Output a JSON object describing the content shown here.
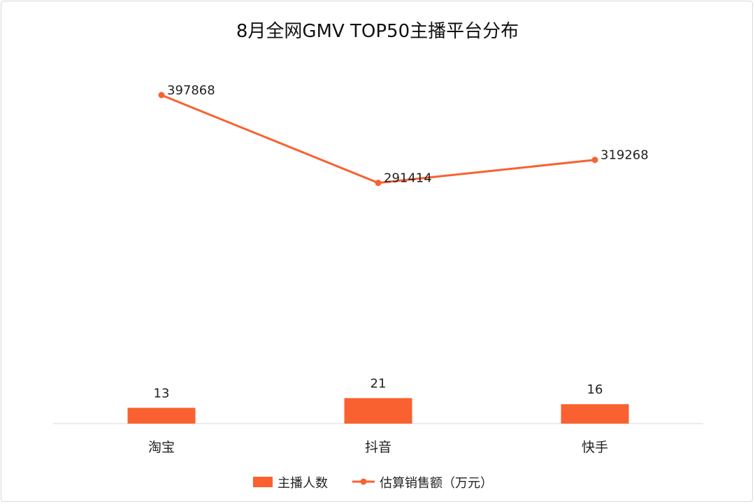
{
  "chart_data": {
    "type": "bar+line",
    "title": "8月全网GMV TOP50主播平台分布",
    "categories": [
      "淘宝",
      "抖音",
      "快手"
    ],
    "series": [
      {
        "name": "主播人数",
        "type": "bar",
        "values": [
          13,
          21,
          16
        ]
      },
      {
        "name": "估算销售额（万元）",
        "type": "line",
        "values": [
          397868,
          291414,
          319268
        ]
      }
    ],
    "legend_position": "bottom",
    "grid": false,
    "colors": {
      "bar": "#F96130",
      "line": "#F96130"
    }
  }
}
